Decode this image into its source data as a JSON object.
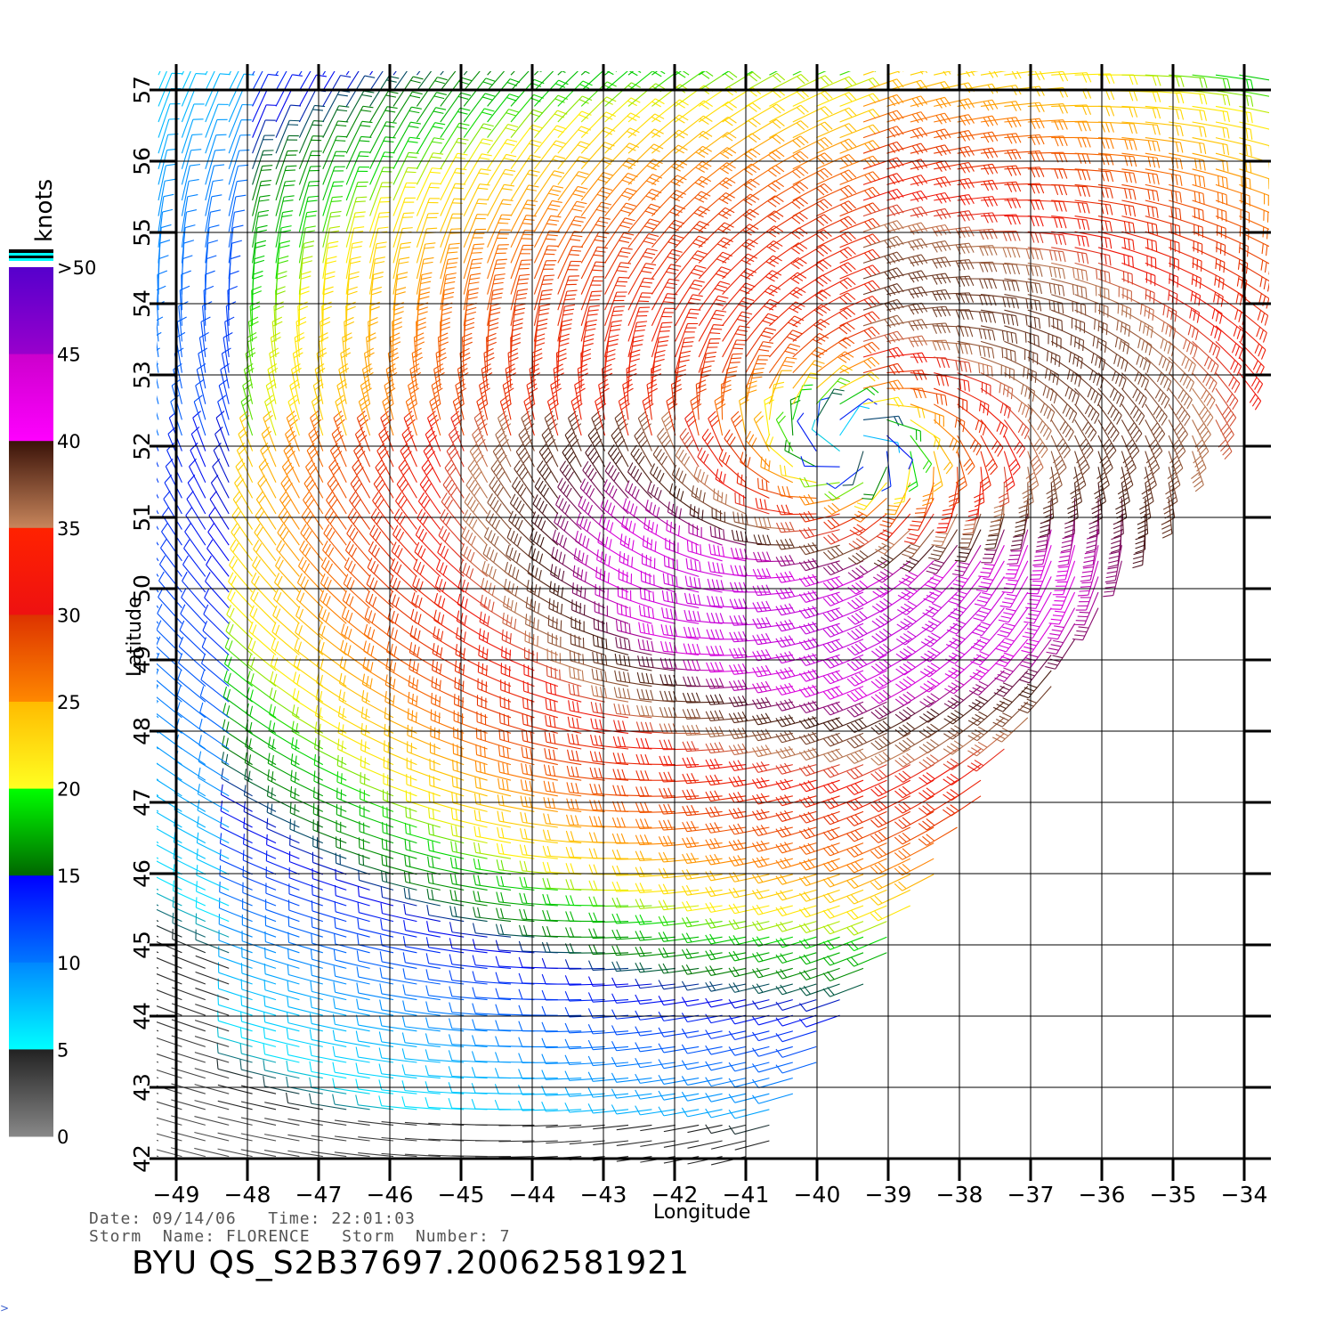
{
  "map": {
    "lon_ticks": [
      "−49",
      "−48",
      "−47",
      "−46",
      "−45",
      "−44",
      "−43",
      "−42",
      "−41",
      "−40",
      "−39",
      "−38",
      "−37",
      "−36",
      "−35",
      "−34"
    ],
    "lat_ticks": [
      "42",
      "43",
      "44",
      "45",
      "46",
      "47",
      "48",
      "49",
      "50",
      "51",
      "52",
      "53",
      "54",
      "55",
      "56",
      "57"
    ],
    "xlabel": "Longitude",
    "ylabel": "Latitude",
    "lon_range": [
      -49,
      -34
    ],
    "lat_range": [
      42,
      57
    ],
    "storm_center": {
      "lon": -39.5,
      "lat": 52.0
    },
    "vector_field": "wind barbs"
  },
  "colorbar": {
    "unit": "knots",
    "labels": [
      ">50",
      "45",
      "40",
      "35",
      "30",
      "25",
      "20",
      "15",
      "10",
      "5",
      "0"
    ],
    "bands": [
      {
        "range": "45-50",
        "colors": [
          "#5500cc",
          "#9900cc"
        ]
      },
      {
        "range": "40-45",
        "colors": [
          "#cc00cc",
          "#ff00ff"
        ]
      },
      {
        "range": "35-40",
        "colors": [
          "#3a1208",
          "#c8865c"
        ]
      },
      {
        "range": "30-35",
        "colors": [
          "#ff2200",
          "#ee1111"
        ]
      },
      {
        "range": "25-30",
        "colors": [
          "#dd3300",
          "#ff8800"
        ]
      },
      {
        "range": "20-25",
        "colors": [
          "#ffbb00",
          "#ffff22"
        ]
      },
      {
        "range": "15-20",
        "colors": [
          "#00ff00",
          "#006600"
        ]
      },
      {
        "range": "10-15",
        "colors": [
          "#0000ff",
          "#0077ff"
        ]
      },
      {
        "range": "5-10",
        "colors": [
          "#0088ff",
          "#00ffff"
        ]
      },
      {
        "range": "0-5",
        "colors": [
          "#222222",
          "#888888"
        ]
      }
    ]
  },
  "info": {
    "date_label": "Date:",
    "date": "09/14/06",
    "time_label": "Time:",
    "time": "22:01:03",
    "storm_name_label": "Storm  Name:",
    "storm_name": "FLORENCE",
    "storm_number_label": "Storm  Number:",
    "storm_number": "7"
  },
  "product_id": "BYU  QS_S2B37697.20062581921",
  "corner_mark": ">"
}
